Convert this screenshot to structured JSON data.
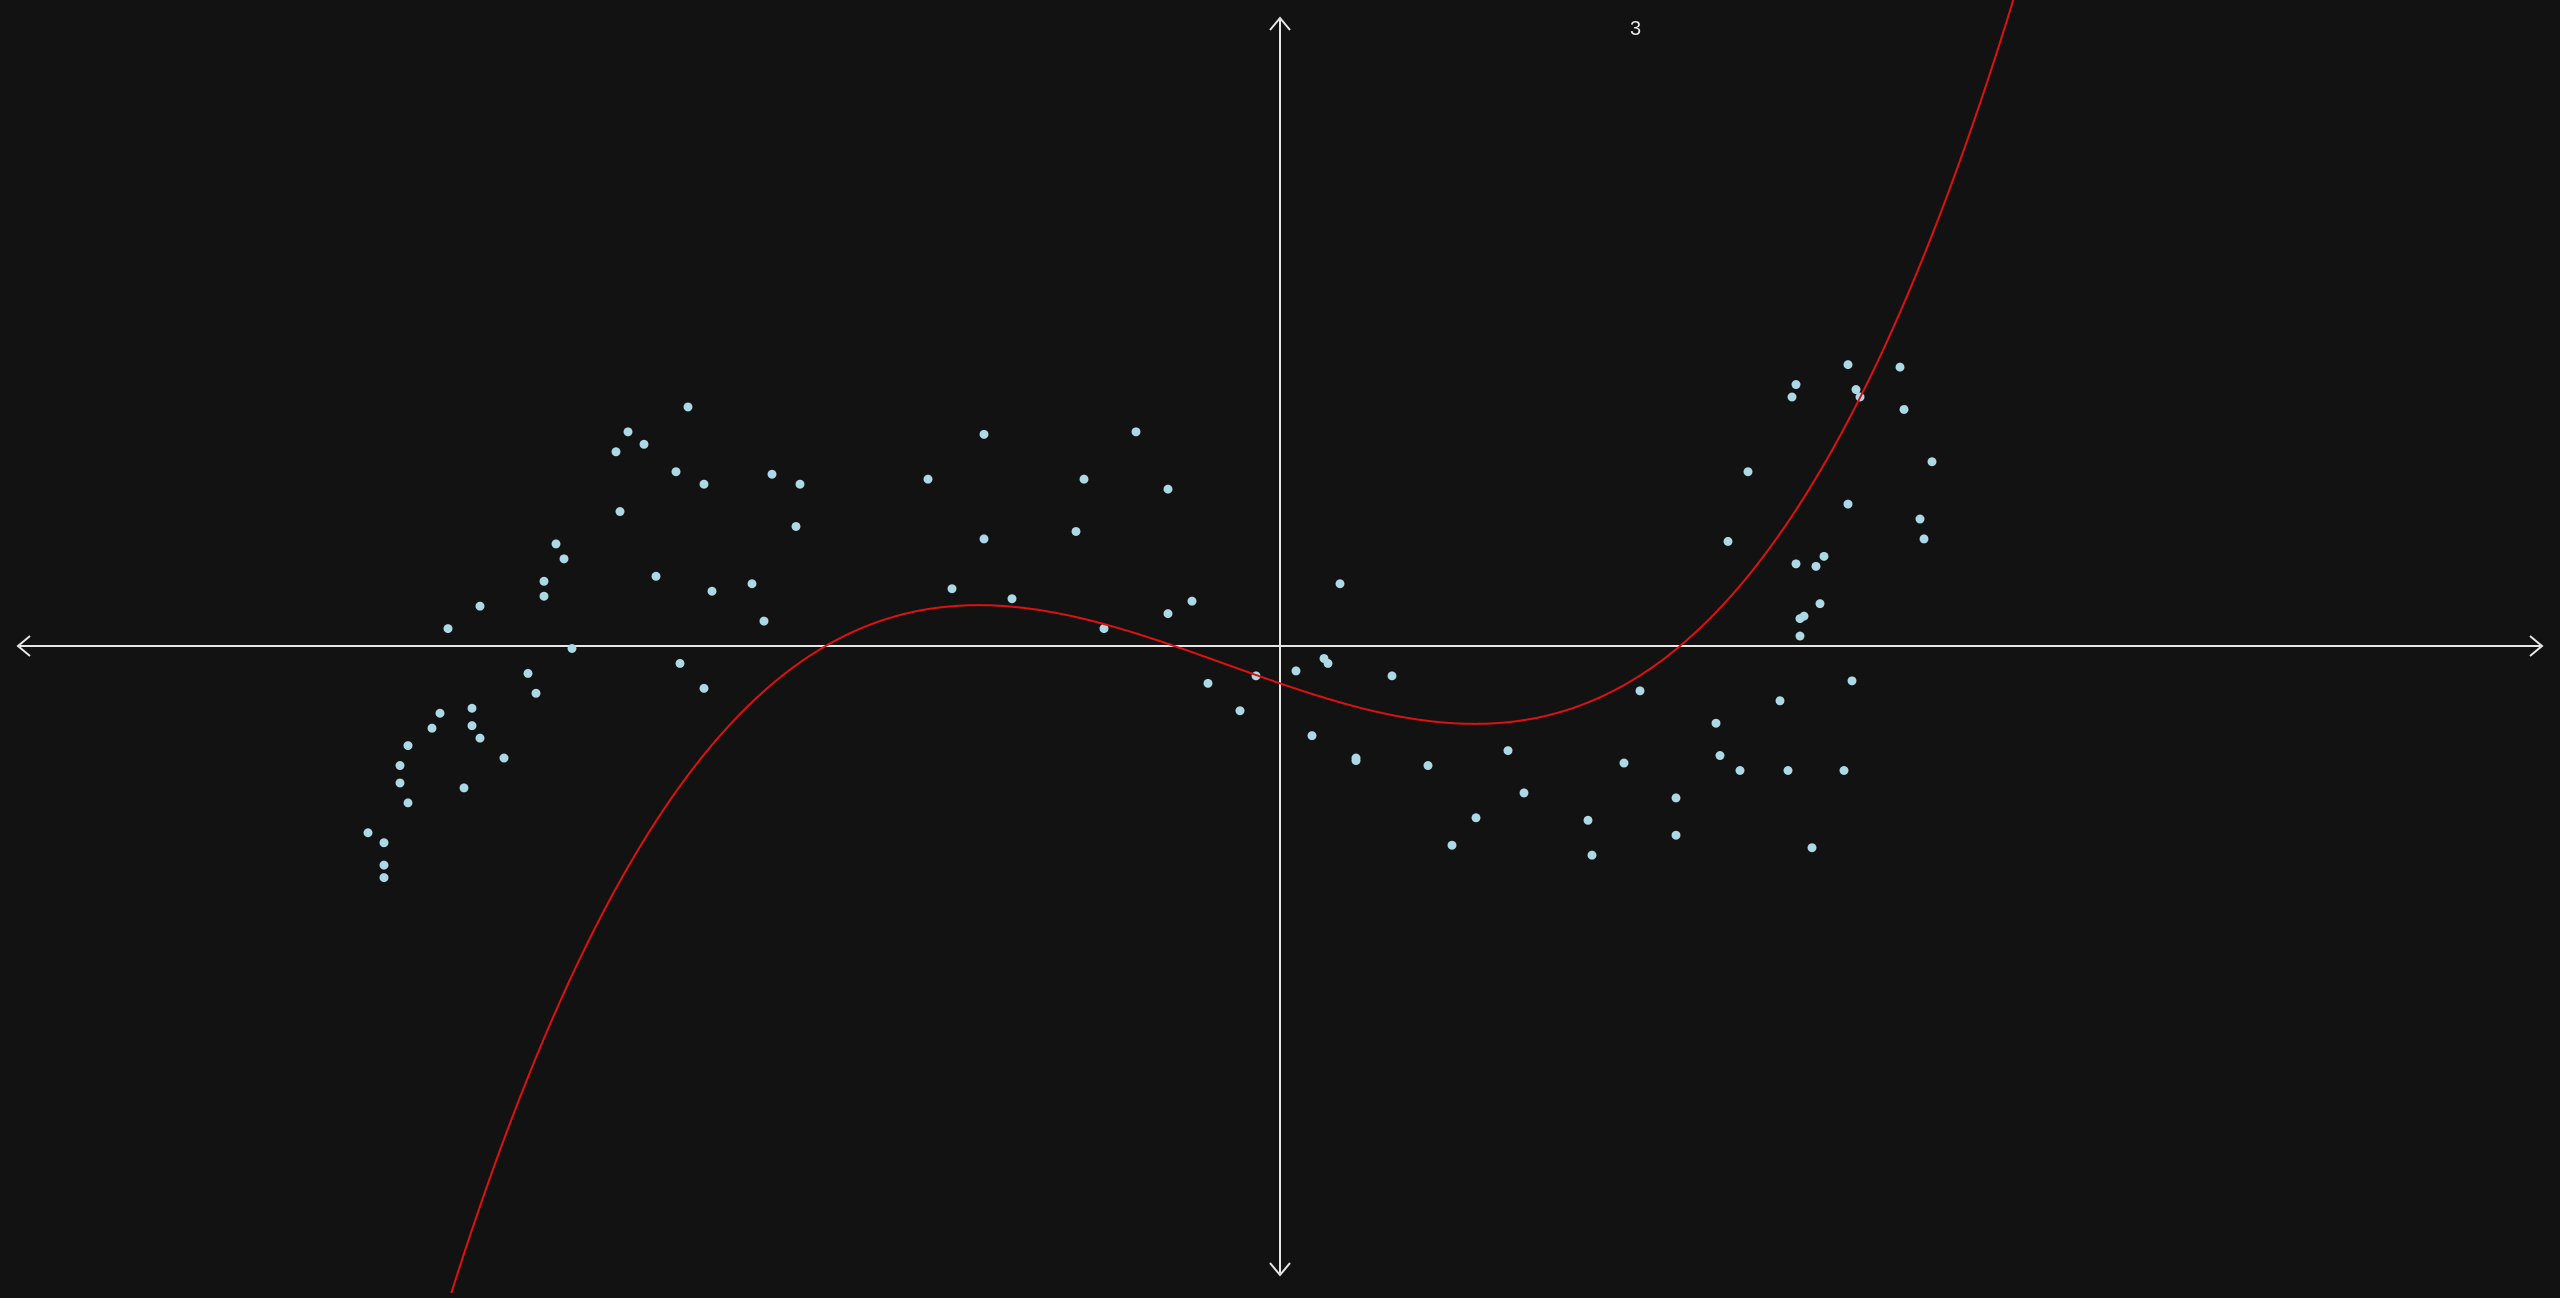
{
  "chart_data": {
    "type": "scatter",
    "title": "",
    "degree_label": "3",
    "xlim": [
      -3.2,
      3.2
    ],
    "ylim": [
      -1.6,
      1.6
    ],
    "colors": {
      "background": "#121212",
      "axes": "#e6e6e6",
      "points": "#add8e6",
      "curve": "#dd1111"
    },
    "fit_curve": {
      "name": "",
      "kind": "polynomial",
      "degree": 3,
      "coefficients": [
        -0.15,
        -0.55,
        0.2,
        0.5
      ]
    },
    "series": [
      {
        "name": "",
        "points": [
          [
            -2.28,
            -0.75
          ],
          [
            -2.24,
            -0.79
          ],
          [
            -2.24,
            -0.88
          ],
          [
            -2.24,
            -0.93
          ],
          [
            -2.18,
            -0.63
          ],
          [
            -2.2,
            -0.55
          ],
          [
            -2.2,
            -0.48
          ],
          [
            -2.18,
            -0.4
          ],
          [
            -2.12,
            -0.33
          ],
          [
            -2.1,
            -0.27
          ],
          [
            -2.08,
            0.07
          ],
          [
            -2.04,
            -0.57
          ],
          [
            -2.02,
            -0.25
          ],
          [
            -2.02,
            -0.32
          ],
          [
            -2.0,
            -0.37
          ],
          [
            -2.0,
            0.16
          ],
          [
            -1.94,
            -0.45
          ],
          [
            -1.88,
            -0.11
          ],
          [
            -1.86,
            -0.19
          ],
          [
            -1.84,
            0.2
          ],
          [
            -1.84,
            0.26
          ],
          [
            -1.81,
            0.41
          ],
          [
            -1.79,
            0.35
          ],
          [
            -1.77,
            -0.01
          ],
          [
            -1.66,
            0.78
          ],
          [
            -1.65,
            0.54
          ],
          [
            -1.63,
            0.86
          ],
          [
            -1.59,
            0.81
          ],
          [
            -1.56,
            0.28
          ],
          [
            -1.51,
            0.7
          ],
          [
            -1.5,
            -0.07
          ],
          [
            -1.48,
            0.96
          ],
          [
            -1.44,
            -0.17
          ],
          [
            -1.44,
            0.65
          ],
          [
            -1.42,
            0.22
          ],
          [
            -1.32,
            0.25
          ],
          [
            -1.29,
            0.1
          ],
          [
            -1.27,
            0.69
          ],
          [
            -1.21,
            0.48
          ],
          [
            -1.2,
            0.65
          ],
          [
            -0.88,
            0.67
          ],
          [
            -0.82,
            0.23
          ],
          [
            -0.74,
            0.85
          ],
          [
            -0.74,
            0.43
          ],
          [
            -0.67,
            0.19
          ],
          [
            -0.51,
            0.46
          ],
          [
            -0.49,
            0.67
          ],
          [
            -0.44,
            0.07
          ],
          [
            -0.36,
            0.86
          ],
          [
            -0.28,
            0.13
          ],
          [
            -0.28,
            0.63
          ],
          [
            -0.22,
            0.18
          ],
          [
            -0.18,
            -0.15
          ],
          [
            -0.1,
            -0.26
          ],
          [
            -0.06,
            -0.12
          ],
          [
            0.04,
            -0.1
          ],
          [
            0.08,
            -0.36
          ],
          [
            0.11,
            -0.05
          ],
          [
            0.12,
            -0.07
          ],
          [
            0.15,
            0.25
          ],
          [
            0.19,
            -0.46
          ],
          [
            0.19,
            -0.45
          ],
          [
            0.28,
            -0.12
          ],
          [
            0.37,
            -0.48
          ],
          [
            0.43,
            -0.8
          ],
          [
            0.49,
            -0.69
          ],
          [
            0.57,
            -0.42
          ],
          [
            0.61,
            -0.59
          ],
          [
            0.77,
            -0.7
          ],
          [
            0.78,
            -0.84
          ],
          [
            0.86,
            -0.47
          ],
          [
            0.9,
            -0.18
          ],
          [
            0.99,
            -0.76
          ],
          [
            0.99,
            -0.61
          ],
          [
            1.09,
            -0.31
          ],
          [
            1.1,
            -0.44
          ],
          [
            1.12,
            0.42
          ],
          [
            1.15,
            -0.5
          ],
          [
            1.17,
            0.7
          ],
          [
            1.25,
            -0.22
          ],
          [
            1.27,
            -0.5
          ],
          [
            1.28,
            1.0
          ],
          [
            1.29,
            1.05
          ],
          [
            1.29,
            0.33
          ],
          [
            1.3,
            0.11
          ],
          [
            1.3,
            0.04
          ],
          [
            1.31,
            0.12
          ],
          [
            1.33,
            -0.81
          ],
          [
            1.34,
            0.32
          ],
          [
            1.35,
            0.17
          ],
          [
            1.36,
            0.36
          ],
          [
            1.41,
            -0.5
          ],
          [
            1.42,
            0.57
          ],
          [
            1.43,
            -0.14
          ],
          [
            1.42,
            1.13
          ],
          [
            1.44,
            1.03
          ],
          [
            1.45,
            1.0
          ],
          [
            1.55,
            1.12
          ],
          [
            1.56,
            0.95
          ],
          [
            1.6,
            0.51
          ],
          [
            1.61,
            0.43
          ],
          [
            1.63,
            0.74
          ]
        ]
      }
    ]
  }
}
